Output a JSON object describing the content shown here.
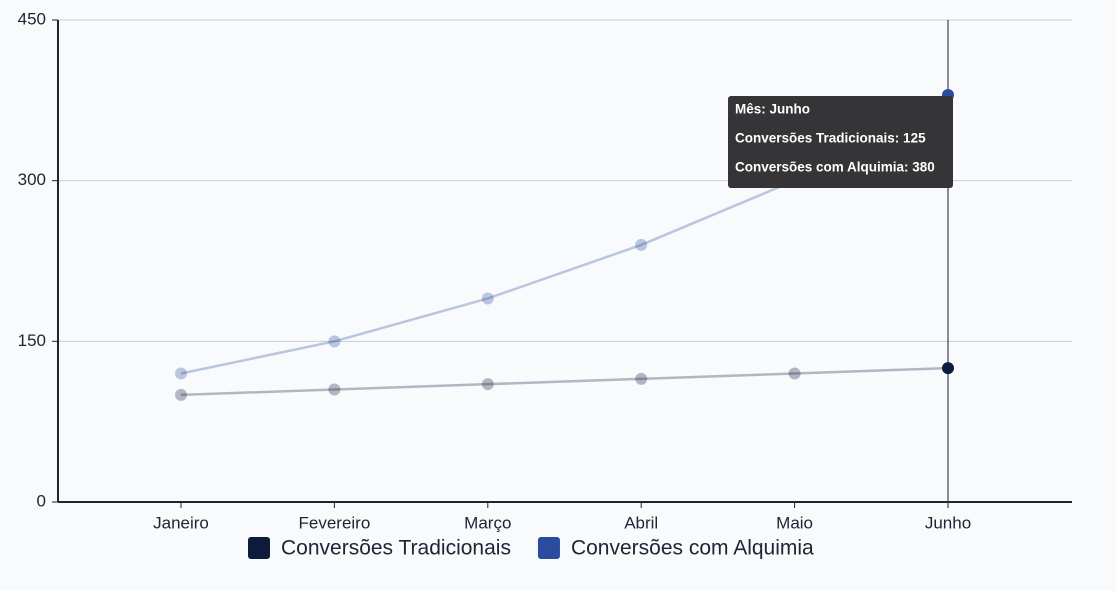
{
  "chart_data": {
    "type": "line",
    "categories": [
      "Janeiro",
      "Fevereiro",
      "Março",
      "Abril",
      "Maio",
      "Junho"
    ],
    "series": [
      {
        "name": "Conversões Tradicionais",
        "color": "#0f1b3d",
        "values": [
          100,
          105,
          110,
          115,
          120,
          125
        ]
      },
      {
        "name": "Conversões com Alquimia",
        "color": "#2b4c9e",
        "values": [
          120,
          150,
          190,
          240,
          300,
          380
        ]
      }
    ],
    "ylim": [
      0,
      450
    ],
    "yticks": [
      0,
      150,
      300,
      450
    ],
    "grid": true,
    "tooltip": {
      "index": 5,
      "lines": [
        "Mês: Junho",
        "Conversões Tradicionais: 125",
        "Conversões com Alquimia: 380"
      ]
    }
  }
}
